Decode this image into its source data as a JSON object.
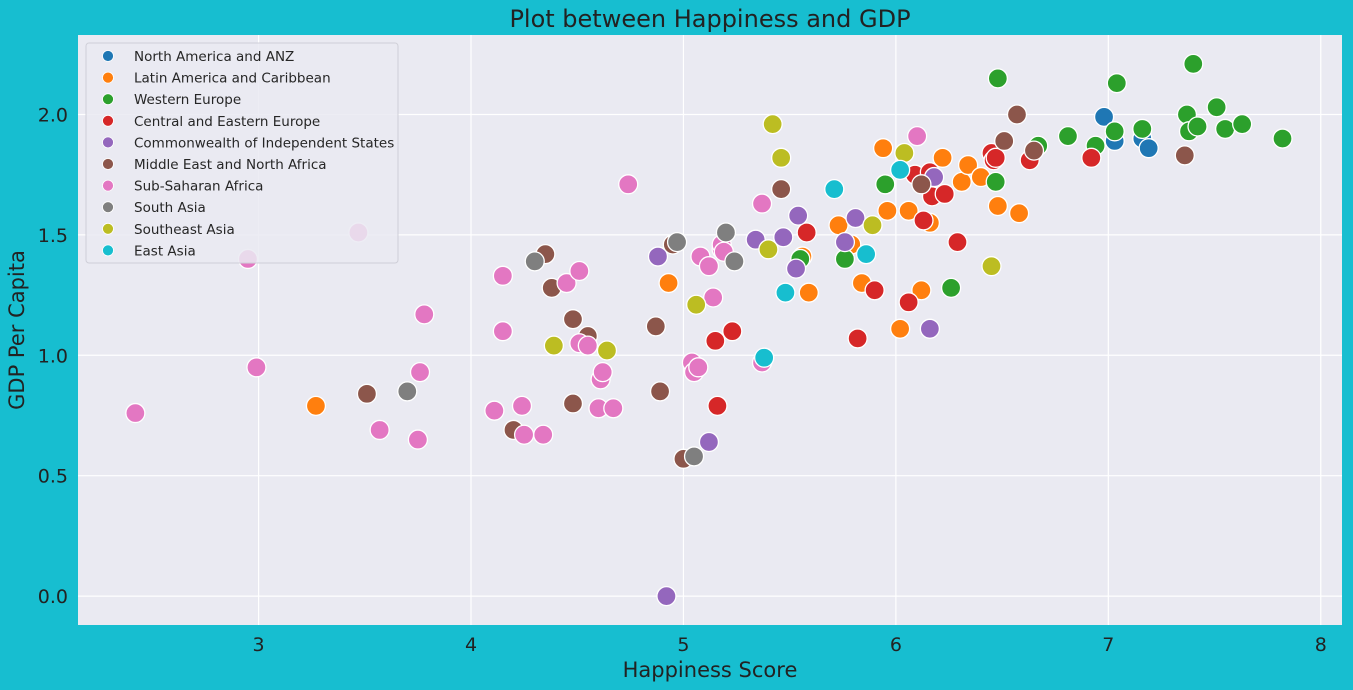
{
  "chart_data": {
    "type": "scatter",
    "title": "Plot between Happiness and GDP",
    "xlabel": "Happiness Score",
    "ylabel": "GDP Per Capita",
    "xlim": [
      2.15,
      8.1
    ],
    "ylim": [
      -0.12,
      2.33
    ],
    "xticks": [
      3,
      4,
      5,
      6,
      7,
      8
    ],
    "yticks": [
      0.0,
      0.5,
      1.0,
      1.5,
      2.0
    ],
    "xtick_labels": [
      "3",
      "4",
      "5",
      "6",
      "7",
      "8"
    ],
    "ytick_labels": [
      "0.0",
      "0.5",
      "1.0",
      "1.5",
      "2.0"
    ],
    "grid": true,
    "legend_position": "top-left",
    "plot_background": "#eaeaf2",
    "figure_background": "#17bed0",
    "series": [
      {
        "name": "North America and ANZ",
        "color": "#1f77b4",
        "points": [
          [
            6.98,
            1.99
          ],
          [
            7.03,
            1.89
          ],
          [
            7.16,
            1.9
          ],
          [
            7.19,
            1.86
          ]
        ]
      },
      {
        "name": "Latin America and Caribbean",
        "color": "#ff7f0e",
        "points": [
          [
            3.27,
            0.79
          ],
          [
            4.93,
            1.3
          ],
          [
            5.56,
            1.41
          ],
          [
            5.59,
            1.26
          ],
          [
            5.73,
            1.54
          ],
          [
            5.79,
            1.46
          ],
          [
            5.84,
            1.3
          ],
          [
            5.94,
            1.86
          ],
          [
            5.96,
            1.6
          ],
          [
            6.02,
            1.11
          ],
          [
            6.06,
            1.6
          ],
          [
            6.12,
            1.27
          ],
          [
            6.16,
            1.55
          ],
          [
            6.22,
            1.82
          ],
          [
            6.31,
            1.72
          ],
          [
            6.34,
            1.79
          ],
          [
            6.4,
            1.74
          ],
          [
            6.48,
            1.62
          ],
          [
            6.58,
            1.59
          ]
        ]
      },
      {
        "name": "Western Europe",
        "color": "#2ca02c",
        "points": [
          [
            5.55,
            1.4
          ],
          [
            5.76,
            1.4
          ],
          [
            5.95,
            1.71
          ],
          [
            6.26,
            1.28
          ],
          [
            6.47,
            1.72
          ],
          [
            6.48,
            2.15
          ],
          [
            6.67,
            1.87
          ],
          [
            6.81,
            1.91
          ],
          [
            6.94,
            1.87
          ],
          [
            7.03,
            1.93
          ],
          [
            7.04,
            2.13
          ],
          [
            7.16,
            1.94
          ],
          [
            7.37,
            2.0
          ],
          [
            7.38,
            1.93
          ],
          [
            7.4,
            2.21
          ],
          [
            7.42,
            1.95
          ],
          [
            7.51,
            2.03
          ],
          [
            7.55,
            1.94
          ],
          [
            7.63,
            1.96
          ],
          [
            7.82,
            1.9
          ]
        ]
      },
      {
        "name": "Central and Eastern Europe",
        "color": "#d62728",
        "points": [
          [
            5.15,
            1.06
          ],
          [
            5.16,
            0.79
          ],
          [
            5.23,
            1.1
          ],
          [
            5.58,
            1.51
          ],
          [
            5.82,
            1.07
          ],
          [
            5.9,
            1.27
          ],
          [
            6.06,
            1.22
          ],
          [
            6.09,
            1.75
          ],
          [
            6.13,
            1.56
          ],
          [
            6.16,
            1.76
          ],
          [
            6.17,
            1.66
          ],
          [
            6.23,
            1.67
          ],
          [
            6.29,
            1.47
          ],
          [
            6.45,
            1.84
          ],
          [
            6.46,
            1.81
          ],
          [
            6.47,
            1.82
          ],
          [
            6.63,
            1.81
          ],
          [
            6.92,
            1.82
          ]
        ]
      },
      {
        "name": "Commonwealth of Independent States",
        "color": "#9467bd",
        "points": [
          [
            4.92,
            0.0
          ],
          [
            4.88,
            1.41
          ],
          [
            5.12,
            0.64
          ],
          [
            5.34,
            1.48
          ],
          [
            5.47,
            1.49
          ],
          [
            5.53,
            1.36
          ],
          [
            5.54,
            1.58
          ],
          [
            5.76,
            1.47
          ],
          [
            5.81,
            1.57
          ],
          [
            6.16,
            1.11
          ],
          [
            6.18,
            1.74
          ]
        ]
      },
      {
        "name": "Middle East and North Africa",
        "color": "#8c564b",
        "points": [
          [
            3.51,
            0.84
          ],
          [
            4.2,
            0.69
          ],
          [
            4.35,
            1.42
          ],
          [
            4.38,
            1.28
          ],
          [
            4.48,
            0.8
          ],
          [
            4.48,
            1.15
          ],
          [
            4.55,
            1.08
          ],
          [
            4.87,
            1.12
          ],
          [
            4.89,
            0.85
          ],
          [
            4.95,
            1.46
          ],
          [
            5.0,
            0.57
          ],
          [
            5.46,
            1.69
          ],
          [
            6.12,
            1.71
          ],
          [
            6.51,
            1.89
          ],
          [
            6.57,
            2.0
          ],
          [
            6.65,
            1.85
          ],
          [
            7.36,
            1.83
          ]
        ]
      },
      {
        "name": "Sub-Saharan Africa",
        "color": "#e377c2",
        "points": [
          [
            2.42,
            0.76
          ],
          [
            2.95,
            1.4
          ],
          [
            2.99,
            0.95
          ],
          [
            3.47,
            1.51
          ],
          [
            3.57,
            0.69
          ],
          [
            3.75,
            0.65
          ],
          [
            3.76,
            0.93
          ],
          [
            3.78,
            1.17
          ],
          [
            4.11,
            0.77
          ],
          [
            4.15,
            1.33
          ],
          [
            4.15,
            1.1
          ],
          [
            4.24,
            0.79
          ],
          [
            4.25,
            0.67
          ],
          [
            4.34,
            0.67
          ],
          [
            4.45,
            1.3
          ],
          [
            4.51,
            1.35
          ],
          [
            4.51,
            1.05
          ],
          [
            4.55,
            1.04
          ],
          [
            4.6,
            0.78
          ],
          [
            4.61,
            0.9
          ],
          [
            4.62,
            0.93
          ],
          [
            4.67,
            0.78
          ],
          [
            4.74,
            1.71
          ],
          [
            5.04,
            0.97
          ],
          [
            5.05,
            0.93
          ],
          [
            5.07,
            0.95
          ],
          [
            5.08,
            1.41
          ],
          [
            5.12,
            1.37
          ],
          [
            5.14,
            1.24
          ],
          [
            5.18,
            1.44
          ],
          [
            5.18,
            1.46
          ],
          [
            5.19,
            1.43
          ],
          [
            5.37,
            1.63
          ],
          [
            5.37,
            0.97
          ],
          [
            6.1,
            1.91
          ]
        ]
      },
      {
        "name": "South Asia",
        "color": "#7f7f7f",
        "points": [
          [
            3.7,
            0.85
          ],
          [
            4.3,
            1.39
          ],
          [
            4.97,
            1.47
          ],
          [
            5.05,
            0.58
          ],
          [
            5.2,
            1.51
          ],
          [
            5.24,
            1.39
          ]
        ]
      },
      {
        "name": "Southeast Asia",
        "color": "#bcbd22",
        "points": [
          [
            4.39,
            1.04
          ],
          [
            4.64,
            1.02
          ],
          [
            5.06,
            1.21
          ],
          [
            5.4,
            1.44
          ],
          [
            5.42,
            1.96
          ],
          [
            5.46,
            1.82
          ],
          [
            5.89,
            1.54
          ],
          [
            6.04,
            1.84
          ],
          [
            6.45,
            1.37
          ]
        ]
      },
      {
        "name": "East Asia",
        "color": "#17becf",
        "points": [
          [
            5.38,
            0.99
          ],
          [
            5.48,
            1.26
          ],
          [
            5.71,
            1.69
          ],
          [
            5.86,
            1.42
          ],
          [
            6.02,
            1.77
          ]
        ]
      }
    ]
  }
}
